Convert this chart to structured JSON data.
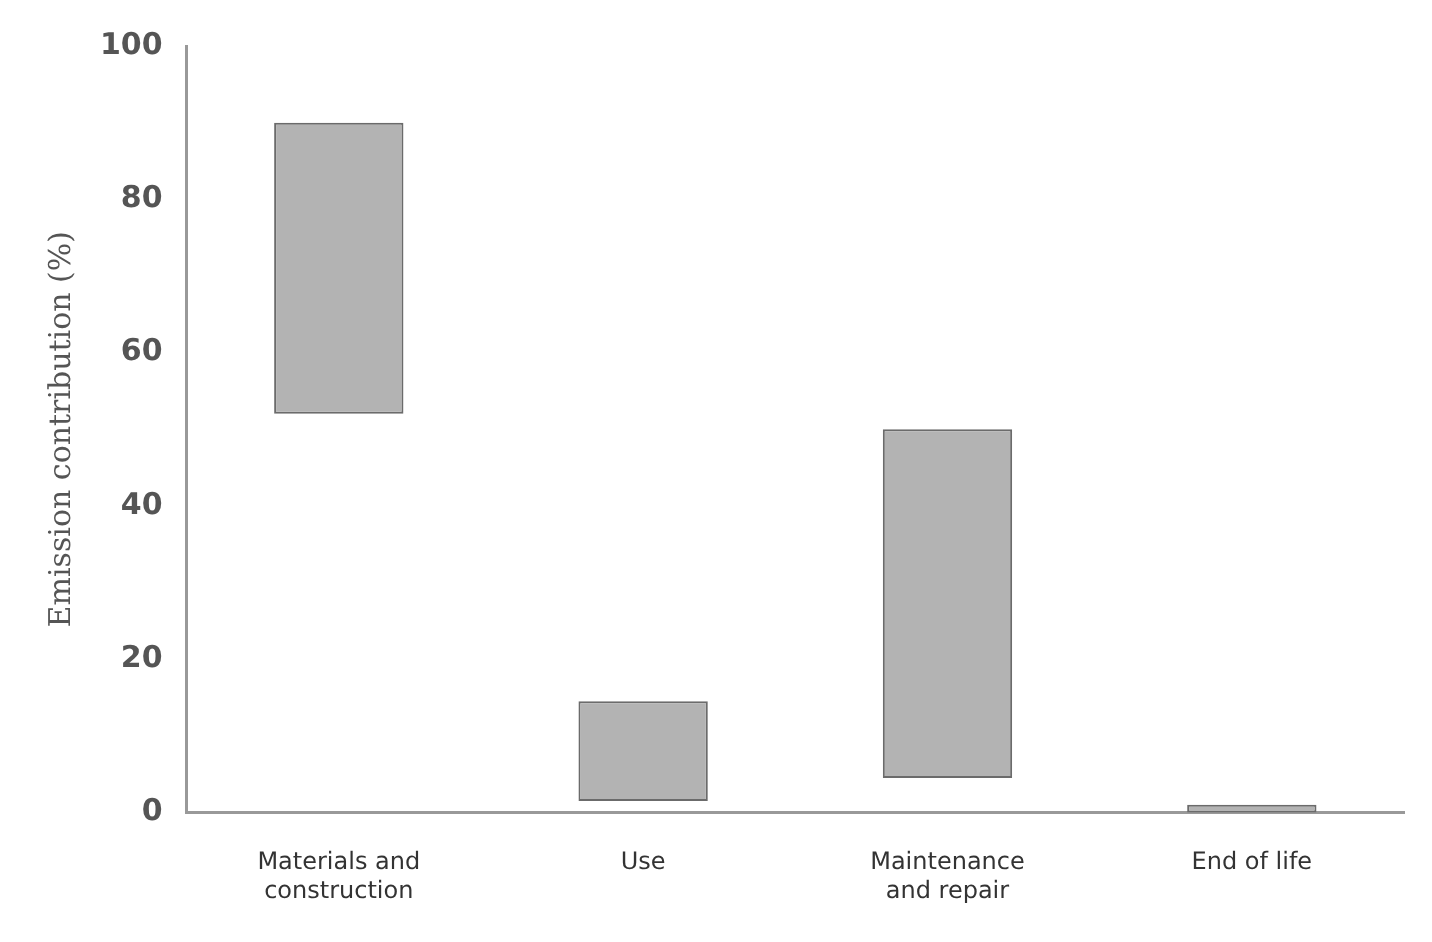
{
  "chart_data": {
    "type": "bar",
    "ylabel": "Emission contribution (%)",
    "categories": [
      "Materials and construction",
      "Use",
      "Maintenance and repair",
      "End of life"
    ],
    "base": [
      52,
      1.5,
      4.5,
      0
    ],
    "values": [
      38,
      13,
      45.5,
      1
    ],
    "color": "#b3b3b3",
    "ylim": [
      0,
      100
    ],
    "yticks": [
      0,
      20,
      40,
      60,
      80,
      100
    ],
    "grid": false,
    "legend": false
  }
}
